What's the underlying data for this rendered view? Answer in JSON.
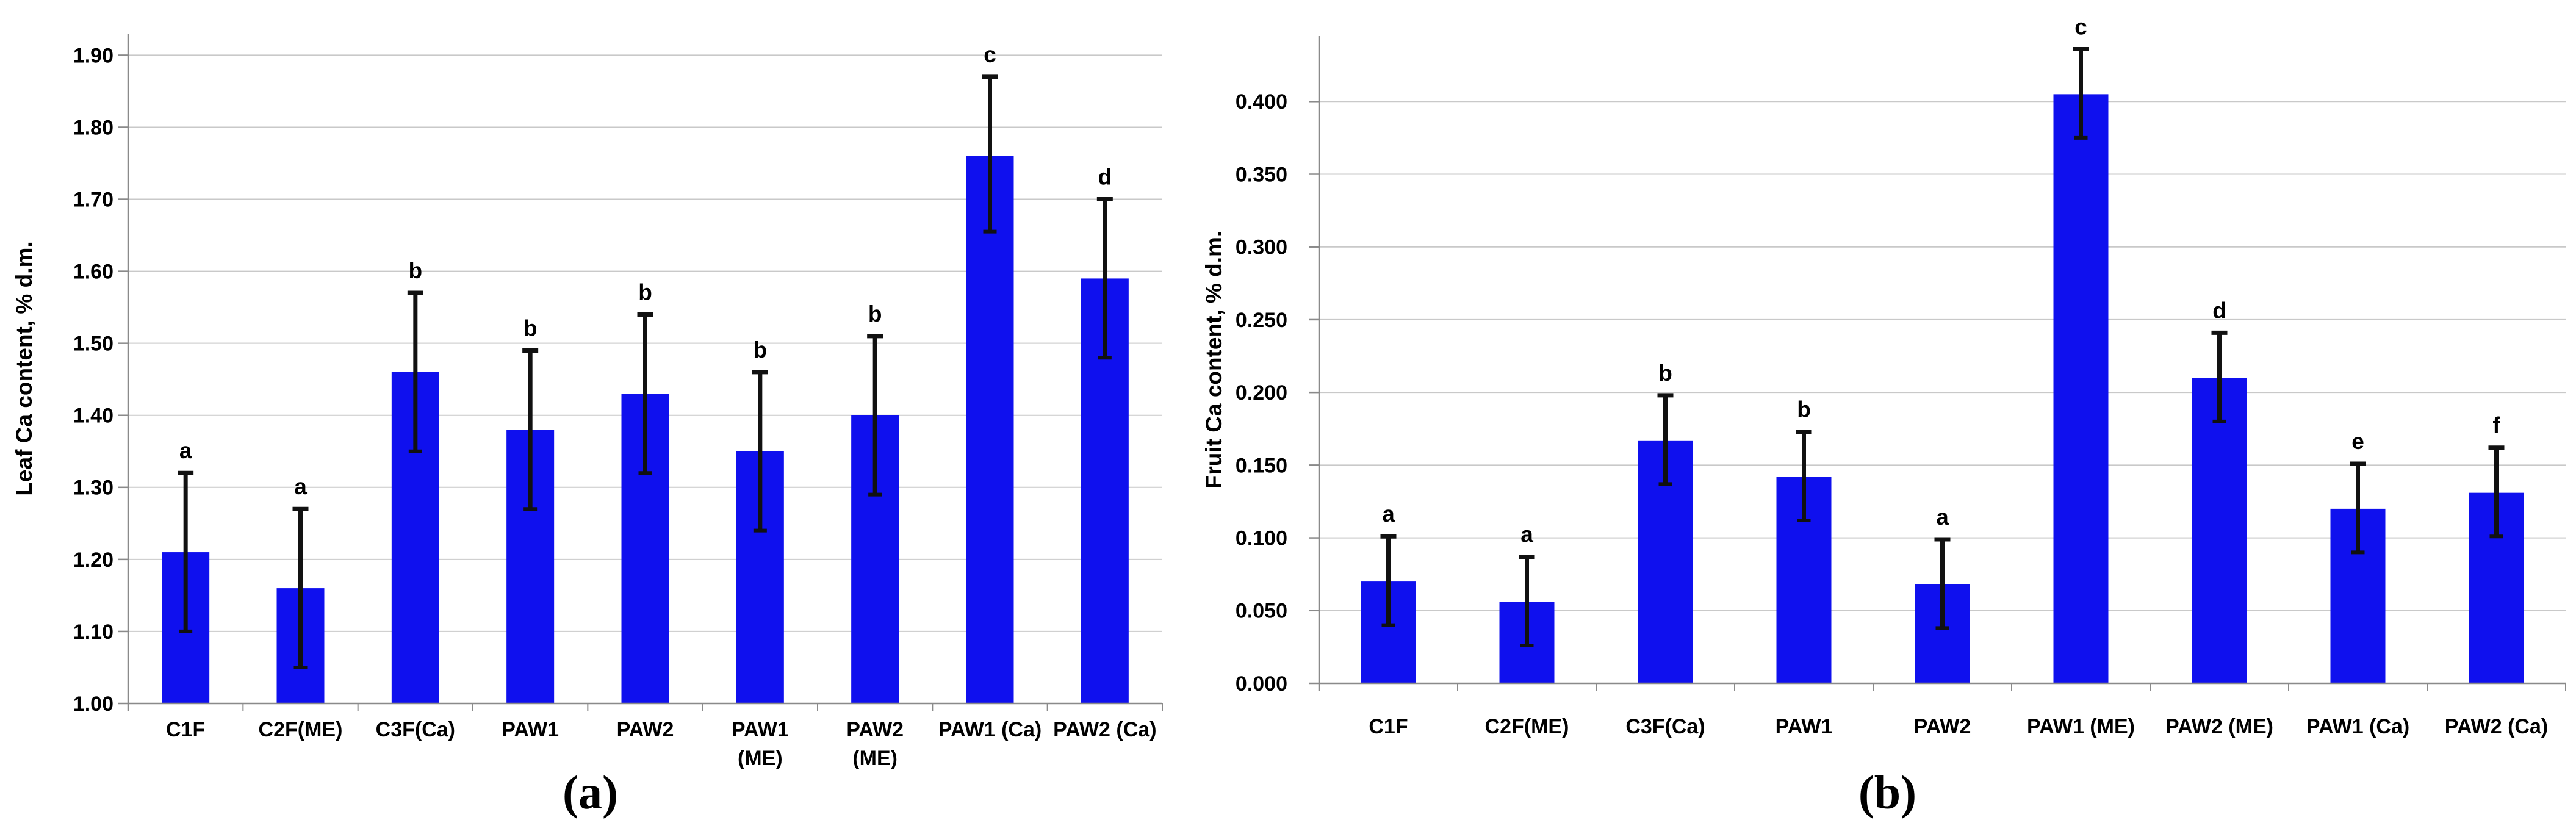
{
  "figure": {
    "background": "#ffffff",
    "style": {
      "bar_color": "#0f10ee",
      "grid_color": "#c9c9c9",
      "axis_color": "#8a8a8a",
      "text_color": "#000000",
      "error_color": "#111111"
    }
  },
  "chart_data": [
    {
      "type": "bar",
      "panel": "a",
      "caption": "(a)",
      "title": "",
      "xlabel": "",
      "ylabel": "Leaf Ca content, % d.m.",
      "categories": [
        "C1F",
        "C2F(ME)",
        "C3F(Ca)",
        "PAW1",
        "PAW2",
        "PAW1\n(ME)",
        "PAW2\n(ME)",
        "PAW1 (Ca)",
        "PAW2 (Ca)"
      ],
      "values": [
        1.21,
        1.16,
        1.46,
        1.38,
        1.43,
        1.35,
        1.4,
        1.76,
        1.59
      ],
      "error_low": [
        1.1,
        1.05,
        1.35,
        1.27,
        1.32,
        1.24,
        1.29,
        1.655,
        1.48
      ],
      "error_high": [
        1.32,
        1.27,
        1.57,
        1.49,
        1.54,
        1.46,
        1.51,
        1.87,
        1.7
      ],
      "sig_letters": [
        "a",
        "a",
        "b",
        "b",
        "b",
        "b",
        "b",
        "c",
        "d"
      ],
      "ylim": [
        1.0,
        1.93
      ],
      "ytick_step": 0.1,
      "ytick_max": 1.9,
      "ytick_decimals": 2,
      "grid": true,
      "legend": "none"
    },
    {
      "type": "bar",
      "panel": "b",
      "caption": "(b)",
      "title": "",
      "xlabel": "",
      "ylabel": "Fruit Ca content, % d.m.",
      "categories": [
        "C1F",
        "C2F(ME)",
        "C3F(Ca)",
        "PAW1",
        "PAW2",
        "PAW1 (ME)",
        "PAW2 (ME)",
        "PAW1 (Ca)",
        "PAW2 (Ca)"
      ],
      "values": [
        0.07,
        0.056,
        0.167,
        0.142,
        0.068,
        0.405,
        0.21,
        0.12,
        0.131
      ],
      "error_low": [
        0.04,
        0.026,
        0.137,
        0.112,
        0.038,
        0.375,
        0.18,
        0.09,
        0.101
      ],
      "error_high": [
        0.101,
        0.087,
        0.198,
        0.173,
        0.099,
        0.436,
        0.241,
        0.151,
        0.162
      ],
      "sig_letters": [
        "a",
        "a",
        "b",
        "b",
        "a",
        "c",
        "d",
        "e",
        "f"
      ],
      "ylim": [
        0.0,
        0.445
      ],
      "ytick_step": 0.05,
      "ytick_max": 0.4,
      "ytick_decimals": 3,
      "grid": true,
      "legend": "none"
    }
  ]
}
